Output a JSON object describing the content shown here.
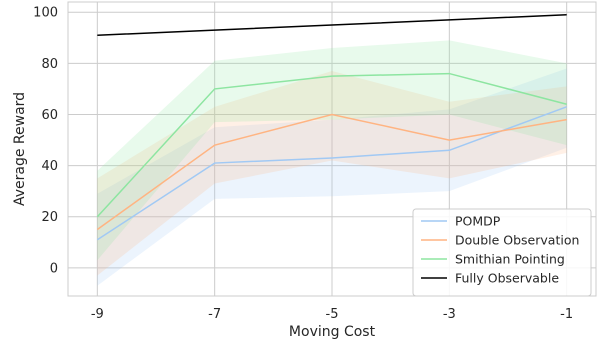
{
  "chart_data": {
    "type": "line",
    "xlabel": "Moving Cost",
    "ylabel": "Average Reward",
    "x": [
      -9,
      -7,
      -5,
      -3,
      -1
    ],
    "xticks": [
      "-9",
      "-7",
      "-5",
      "-3",
      "-1"
    ],
    "yticks": [
      "0",
      "20",
      "40",
      "60",
      "80",
      "100"
    ],
    "xlim": [
      -9.5,
      -0.5
    ],
    "ylim": [
      -11,
      104
    ],
    "grid": true,
    "legend_position": "lower-right",
    "series": [
      {
        "name": "POMDP",
        "color": "#a1c9f4",
        "values": [
          11,
          41,
          43,
          46,
          63
        ],
        "lower": [
          -7,
          27,
          28,
          30,
          47
        ],
        "upper": [
          29,
          55,
          58,
          62,
          78
        ]
      },
      {
        "name": "Double Observation",
        "color": "#ffb482",
        "values": [
          15,
          48,
          60,
          50,
          58
        ],
        "lower": [
          -3,
          33,
          42,
          35,
          45
        ],
        "upper": [
          35,
          63,
          77,
          65,
          71
        ]
      },
      {
        "name": "Smithian Pointing",
        "color": "#8de5a1",
        "values": [
          20,
          70,
          75,
          76,
          64
        ],
        "lower": [
          3,
          57,
          58,
          60,
          48
        ],
        "upper": [
          38,
          81,
          86,
          89,
          80
        ]
      },
      {
        "name": "Fully Observable",
        "color": "#000000",
        "values": [
          91,
          93,
          95,
          97,
          99
        ]
      }
    ]
  }
}
